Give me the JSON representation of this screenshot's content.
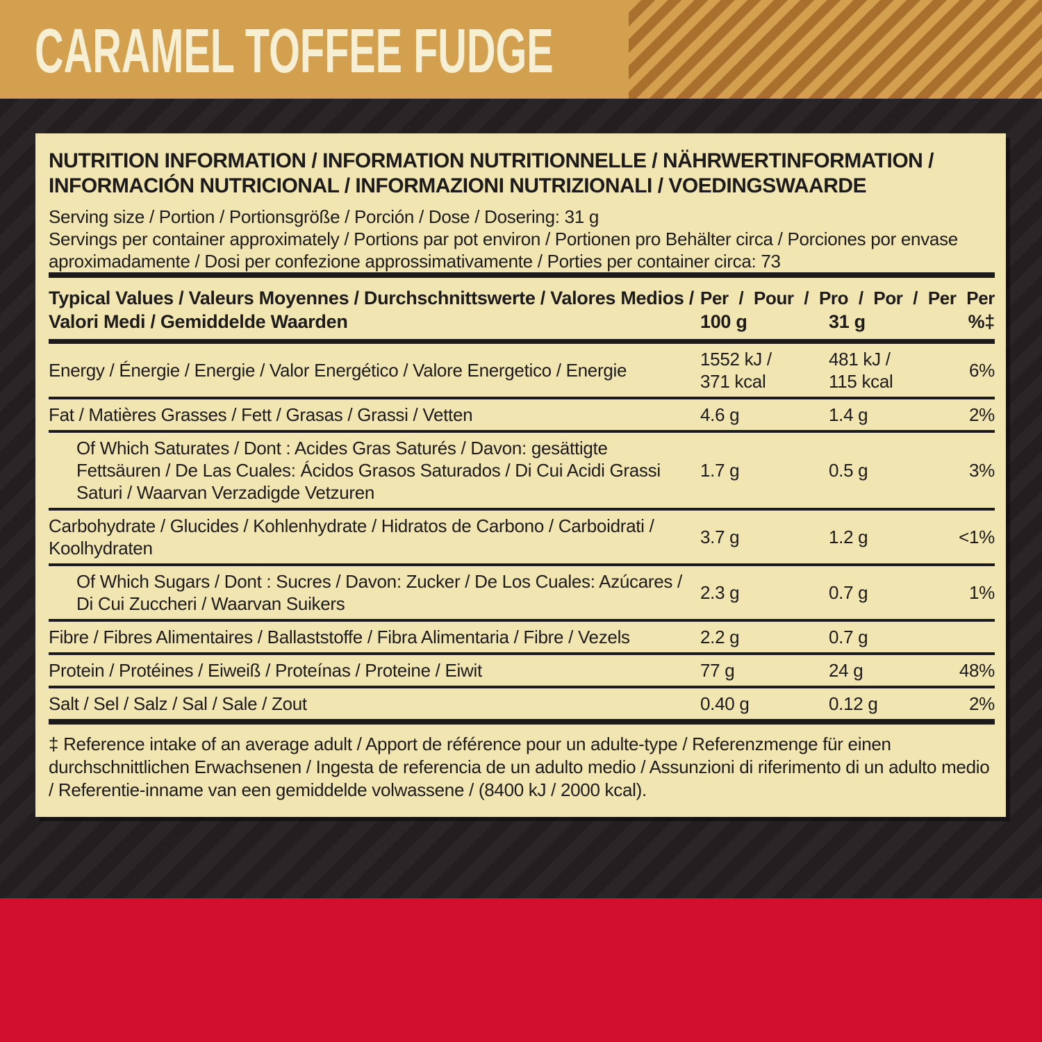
{
  "flavor_banner": {
    "title": "CARAMEL TOFFEE FUDGE"
  },
  "panel": {
    "heading": "NUTRITION INFORMATION / INFORMATION NUTRITIONNELLE / NÄHRWERTINFORMATION / INFORMACIÓN NUTRICIONAL / INFORMAZIONI NUTRIZIONALI / VOEDINGSWAARDE",
    "serving_size": "Serving size / Portion / Portionsgröße / Porción / Dose / Dosering: 31 g",
    "servings_per_container": "Servings per container approximately / Portions par pot environ / Portionen pro Behälter circa / Porciones por envase aproximadamente / Dosi per confezione approssimativamente / Porties per container circa: 73",
    "table": {
      "header": {
        "label": "Typical Values / Valeurs Moyennes / Durchschnittswerte / Valores Medios / Valori Medi / Gemiddelde Waarden",
        "per_line": "Per / Pour / Pro / Por / Per Per",
        "col_100g": "100 g",
        "col_31g": "31 g",
        "col_pct": "%‡"
      },
      "rows": [
        {
          "key": "energy",
          "indent": false,
          "label": "Energy / Énergie / Energie / Valor Energético / Valore Energetico / Energie",
          "per100": "1552 kJ /\n371 kcal",
          "per31": "481 kJ /\n115 kcal",
          "pct": "6%"
        },
        {
          "key": "fat",
          "indent": false,
          "label": "Fat / Matières Grasses / Fett / Grasas / Grassi / Vetten",
          "per100": "4.6 g",
          "per31": "1.4 g",
          "pct": "2%"
        },
        {
          "key": "saturates",
          "indent": true,
          "label": "Of Which Saturates / Dont : Acides Gras Saturés / Davon: gesättigte Fettsäuren / De Las Cuales: Ácidos Grasos Saturados / Di Cui Acidi Grassi Saturi / Waarvan Verzadigde Vetzuren",
          "per100": "1.7 g",
          "per31": "0.5 g",
          "pct": "3%"
        },
        {
          "key": "carbohydrate",
          "indent": false,
          "label": "Carbohydrate / Glucides / Kohlenhydrate / Hidratos de Carbono / Carboidrati / Koolhydraten",
          "per100": "3.7 g",
          "per31": "1.2 g",
          "pct": "<1%"
        },
        {
          "key": "sugars",
          "indent": true,
          "label": "Of Which Sugars / Dont : Sucres / Davon: Zucker / De Los Cuales: Azúcares / Di Cui Zuccheri / Waarvan Suikers",
          "per100": "2.3 g",
          "per31": "0.7 g",
          "pct": "1%"
        },
        {
          "key": "fibre",
          "indent": false,
          "label": "Fibre / Fibres Alimentaires / Ballaststoffe / Fibra Alimentaria / Fibre / Vezels",
          "per100": "2.2 g",
          "per31": "0.7 g",
          "pct": ""
        },
        {
          "key": "protein",
          "indent": false,
          "label": "Protein / Protéines / Eiweiß / Proteínas / Proteine / Eiwit",
          "per100": "77 g",
          "per31": "24 g",
          "pct": "48%"
        },
        {
          "key": "salt",
          "indent": false,
          "label": "Salt / Sel / Salz / Sal / Sale / Zout",
          "per100": "0.40 g",
          "per31": "0.12 g",
          "pct": "2%"
        }
      ]
    },
    "footnote": "‡ Reference intake of an average adult / Apport de référence pour un adulte-type / Referenzmenge für einen durchschnittlichen Erwachsenen / Ingesta de referencia de un adulto medio / Assunzioni di riferimento di un adulto medio / Referentie-inname van een gemiddelde volwassene / (8400 kJ / 2000 kcal)."
  },
  "colors": {
    "banner_gold": "#d2a04f",
    "banner_stripe_brown": "#a96f2d",
    "background_dark": "#231f20",
    "background_stripe": "#2a2627",
    "panel_cream": "#f1e6b1",
    "red_band": "#d30f2e",
    "text_dark": "#1d1a1b",
    "title_cream": "#f6efd3"
  }
}
